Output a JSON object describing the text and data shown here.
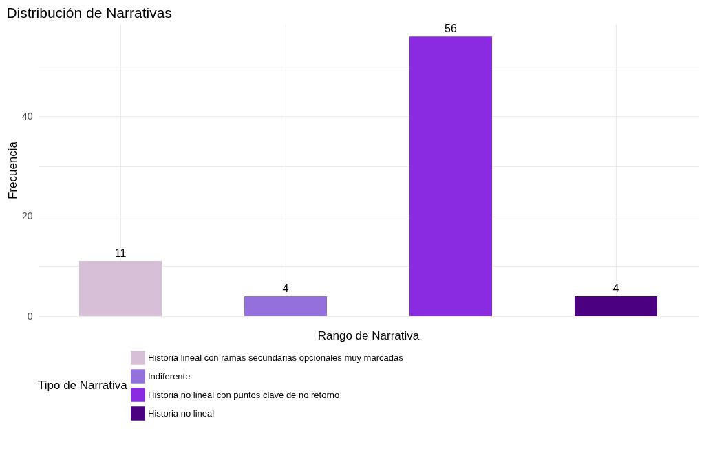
{
  "chart_data": {
    "type": "bar",
    "title": "Distribución de Narrativas",
    "xlabel": "Rango de Narrativa",
    "ylabel": "Frecuencia",
    "legend_title": "Tipo de Narrativa",
    "categories": [
      null,
      null,
      null,
      null
    ],
    "series": [
      {
        "name": "Historia lineal con ramas secundarias opcionales muy marcadas",
        "color": "#d8bfd8",
        "values": [
          11,
          null,
          null,
          null
        ]
      },
      {
        "name": "Indiferente",
        "color": "#9370db",
        "values": [
          null,
          4,
          null,
          null
        ]
      },
      {
        "name": "Historia no lineal con puntos clave de no retorno",
        "color": "#8a2be2",
        "values": [
          null,
          null,
          56,
          null
        ]
      },
      {
        "name": "Historia no lineal",
        "color": "#4b0082",
        "values": [
          null,
          null,
          null,
          4
        ]
      }
    ],
    "ylim": [
      0,
      58.5
    ],
    "yticks": [
      0,
      {
        "value": 10,
        "label": null
      },
      20,
      {
        "value": 30,
        "label": null
      },
      40,
      {
        "value": 50,
        "label": null
      }
    ],
    "grid": true,
    "legend": "bottom",
    "data_labels": true
  }
}
